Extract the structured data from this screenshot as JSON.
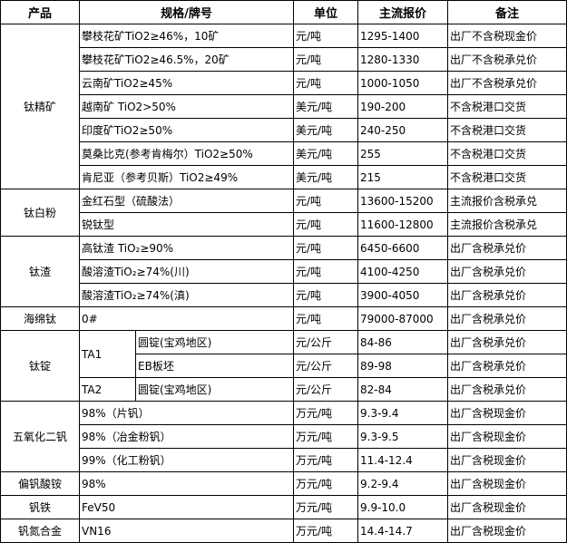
{
  "header": {
    "product": "产品",
    "spec": "规格/牌号",
    "unit": "单位",
    "price": "主流报价",
    "note": "备注"
  },
  "groups": {
    "titanium_concentrate": "钛精矿",
    "titanium_dioxide": "钛白粉",
    "titanium_slag": "钛渣",
    "sponge_titanium": "海绵钛",
    "titanium_ingot": "钛锭",
    "v2o5": "五氧化二钒",
    "amv": "偏钒酸铵",
    "fev": "钒铁",
    "vn": "钒氮合金"
  },
  "rows": [
    {
      "spec": "攀枝花矿TiO2≥46%，10矿",
      "unit": "元/吨",
      "price": "1295-1400",
      "note": "出厂不含税现金价"
    },
    {
      "spec": "攀枝花矿TiO2≥46.5%，20矿",
      "unit": "元/吨",
      "price": "1280-1330",
      "note": "出厂不含税承兑价"
    },
    {
      "spec": "云南矿TiO2≥45%",
      "unit": "元/吨",
      "price": "1000-1050",
      "note": "出厂不含税承兑价"
    },
    {
      "spec": "越南矿 TiO2>50%",
      "unit": "美元/吨",
      "price": "190-200",
      "note": "不含税港口交货"
    },
    {
      "spec": "印度矿TiO2≥50%",
      "unit": "美元/吨",
      "price": "240-250",
      "note": "不含税港口交货"
    },
    {
      "spec": "莫桑比克(参考肯梅尔）TiO2≥50%",
      "unit": "美元/吨",
      "price": "255",
      "note": "不含税港口交货"
    },
    {
      "spec": "肯尼亚（参考贝斯）TiO2≥49%",
      "unit": "美元/吨",
      "price": "215",
      "note": "不含税港口交货"
    },
    {
      "spec": "金红石型（硫酸法）",
      "unit": "元/吨",
      "price": "13600-15200",
      "note": "主流报价含税承兑"
    },
    {
      "spec": "锐钛型",
      "unit": "元/吨",
      "price": "11600-12800",
      "note": "主流报价含税承兑"
    },
    {
      "spec": "高钛渣 TiO₂≥90%",
      "unit": "元/吨",
      "price": "6450-6600",
      "note": "出厂含税承兑价"
    },
    {
      "spec": "酸溶渣TiO₂≥74%(川)",
      "unit": "元/吨",
      "price": "4100-4250",
      "note": "出厂含税承兑价"
    },
    {
      "spec": "酸溶渣TiO₂≥74%(滇)",
      "unit": "元/吨",
      "price": "3900-4050",
      "note": "出厂含税承兑价"
    },
    {
      "spec": "0#",
      "unit": "元/吨",
      "price": "79000-87000",
      "note": "出厂含税承兑价"
    },
    {
      "grade": "TA1",
      "spec": "圆锭(宝鸡地区)",
      "unit": "元/公斤",
      "price": "84-86",
      "note": "出厂含税承兑价"
    },
    {
      "spec": "EB板坯",
      "unit": "元/公斤",
      "price": "89-98",
      "note": "出厂含税承兑价"
    },
    {
      "grade": "TA2",
      "spec": "圆锭(宝鸡地区)",
      "unit": "元/公斤",
      "price": "82-84",
      "note": "出厂含税承兑价"
    },
    {
      "spec": "98%（片钒）",
      "unit": "万元/吨",
      "price": "9.3-9.4",
      "note": "出厂含税现金价"
    },
    {
      "spec": "98%（冶金粉钒）",
      "unit": "万元/吨",
      "price": "9.3-9.5",
      "note": "出厂含税现金价"
    },
    {
      "spec": "99%（化工粉钒）",
      "unit": "万元/吨",
      "price": "11.4-12.4",
      "note": "出厂含税现金价"
    },
    {
      "spec": "98%",
      "unit": "万元/吨",
      "price": "9.2-9.4",
      "note": "出厂含税现金价"
    },
    {
      "spec": "FeV50",
      "unit": "万元/吨",
      "price": "9.9-10.0",
      "note": "出厂含税现金价"
    },
    {
      "spec": "VN16",
      "unit": "万元/吨",
      "price": "14.4-14.7",
      "note": "出厂含税现金价"
    }
  ]
}
